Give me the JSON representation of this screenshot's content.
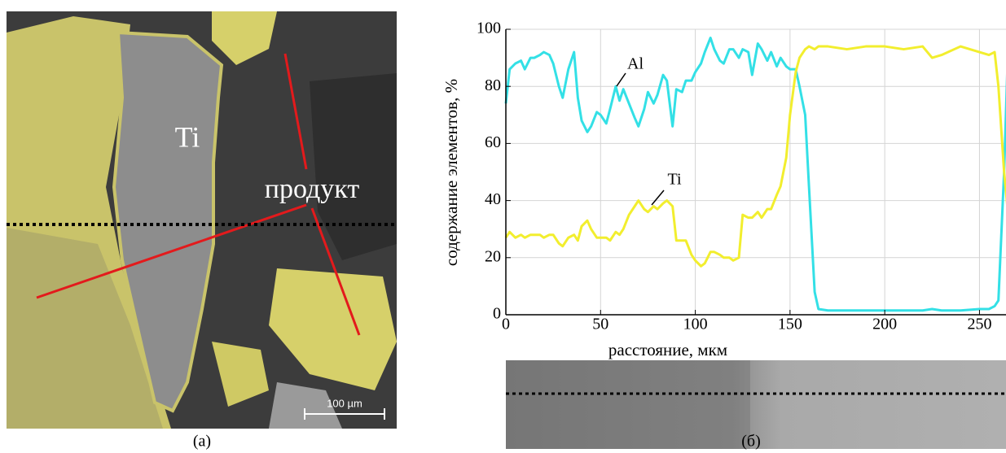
{
  "figure": {
    "panel_a": {
      "label": "(a)",
      "phase_label": "Ti",
      "product_label": "продукт",
      "scale_bar": "100 µm"
    },
    "panel_b": {
      "label": "(б)"
    }
  },
  "chart_data": {
    "type": "line",
    "x_label": "расстояние, мкм",
    "y_label": "содержание элементов, %",
    "annotations": [
      "Al",
      "Ti"
    ],
    "x": [
      0,
      2,
      5,
      8,
      10,
      13,
      15,
      18,
      20,
      23,
      25,
      28,
      30,
      33,
      36,
      38,
      40,
      43,
      45,
      48,
      50,
      53,
      55,
      58,
      60,
      62,
      65,
      68,
      70,
      73,
      75,
      78,
      80,
      83,
      85,
      88,
      90,
      93,
      95,
      98,
      100,
      103,
      105,
      108,
      110,
      113,
      115,
      118,
      120,
      123,
      125,
      128,
      130,
      133,
      135,
      138,
      140,
      143,
      145,
      148,
      150,
      153,
      155,
      158,
      160,
      163,
      165,
      170,
      180,
      190,
      200,
      210,
      220,
      225,
      230,
      240,
      250,
      255,
      258,
      260,
      263,
      265
    ],
    "series": [
      {
        "name": "Al",
        "color": "#33e0e6",
        "values": [
          74,
          86,
          88,
          89,
          86,
          90,
          90,
          91,
          92,
          91,
          88,
          80,
          76,
          86,
          92,
          76,
          68,
          64,
          66,
          71,
          70,
          67,
          72,
          80,
          75,
          79,
          74,
          69,
          66,
          72,
          78,
          74,
          77,
          84,
          82,
          66,
          79,
          78,
          82,
          82,
          85,
          88,
          92,
          97,
          93,
          89,
          88,
          93,
          93,
          90,
          93,
          92,
          84,
          95,
          93,
          89,
          92,
          87,
          90,
          87,
          86,
          86,
          80,
          70,
          45,
          8,
          2,
          1.5,
          1.5,
          1.5,
          1.5,
          1.5,
          1.5,
          2,
          1.5,
          1.5,
          2,
          2,
          3,
          5,
          50,
          92
        ]
      },
      {
        "name": "Ti",
        "color": "#f2ee2e",
        "values": [
          27,
          29,
          27,
          28,
          27,
          28,
          28,
          28,
          27,
          28,
          28,
          25,
          24,
          27,
          28,
          26,
          31,
          33,
          30,
          27,
          27,
          27,
          26,
          29,
          28,
          30,
          35,
          38,
          40,
          37,
          36,
          38,
          37,
          39,
          40,
          38,
          26,
          26,
          26,
          21,
          19,
          17,
          18,
          22,
          22,
          21,
          20,
          20,
          19,
          20,
          35,
          34,
          34,
          36,
          34,
          37,
          37,
          42,
          45,
          55,
          70,
          85,
          90,
          93,
          94,
          93,
          94,
          94,
          93,
          94,
          94,
          93,
          94,
          90,
          91,
          94,
          92,
          91,
          92,
          80,
          50,
          36
        ]
      }
    ],
    "xlim": [
      0,
      264
    ],
    "ylim": [
      0,
      100
    ],
    "xticks": [
      0,
      50,
      100,
      150,
      200,
      250
    ],
    "yticks": [
      0,
      20,
      40,
      60,
      80,
      100
    ],
    "grid": true
  }
}
